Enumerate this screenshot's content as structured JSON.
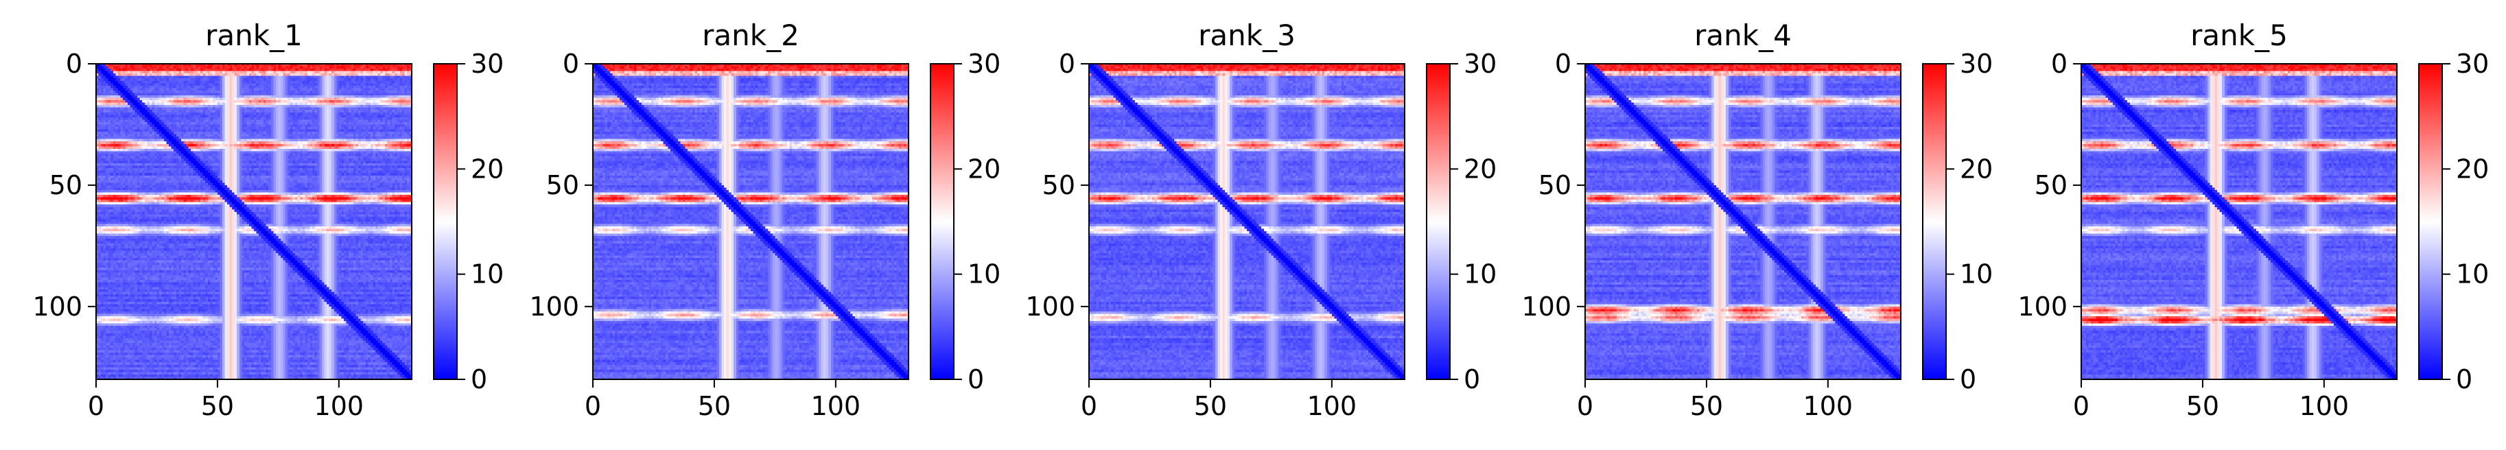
{
  "chart_data": [
    {
      "type": "heatmap",
      "title": "rank_1",
      "x_ticks": [
        0,
        50,
        100
      ],
      "y_ticks": [
        0,
        50,
        100
      ],
      "xlim": [
        0,
        130
      ],
      "ylim": [
        130,
        0
      ],
      "colorbar": {
        "min": 0,
        "max": 30,
        "ticks": [
          0,
          10,
          20,
          30
        ]
      },
      "features": {
        "top_band_max": 30,
        "row_bands": [
          [
            15,
            19
          ],
          [
            33,
            23
          ],
          [
            55,
            27
          ],
          [
            68,
            15
          ],
          [
            105,
            14
          ]
        ],
        "col_bands": [
          [
            55,
            21
          ],
          [
            95,
            16
          ],
          [
            75,
            14
          ]
        ]
      }
    },
    {
      "type": "heatmap",
      "title": "rank_2",
      "x_ticks": [
        0,
        50,
        100
      ],
      "y_ticks": [
        0,
        50,
        100
      ],
      "xlim": [
        0,
        130
      ],
      "ylim": [
        130,
        0
      ],
      "colorbar": {
        "min": 0,
        "max": 30,
        "ticks": [
          0,
          10,
          20,
          30
        ]
      },
      "features": {
        "top_band_max": 30,
        "row_bands": [
          [
            15,
            18
          ],
          [
            33,
            21
          ],
          [
            55,
            25
          ],
          [
            68,
            14
          ],
          [
            103,
            16
          ]
        ],
        "col_bands": [
          [
            55,
            20
          ],
          [
            95,
            15
          ],
          [
            75,
            13
          ]
        ]
      }
    },
    {
      "type": "heatmap",
      "title": "rank_3",
      "x_ticks": [
        0,
        50,
        100
      ],
      "y_ticks": [
        0,
        50,
        100
      ],
      "xlim": [
        0,
        130
      ],
      "ylim": [
        130,
        0
      ],
      "colorbar": {
        "min": 0,
        "max": 30,
        "ticks": [
          0,
          10,
          20,
          30
        ]
      },
      "features": {
        "top_band_max": 30,
        "row_bands": [
          [
            15,
            18
          ],
          [
            33,
            21
          ],
          [
            55,
            24
          ],
          [
            68,
            14
          ],
          [
            104,
            15
          ]
        ],
        "col_bands": [
          [
            55,
            20
          ],
          [
            95,
            14
          ],
          [
            75,
            13
          ]
        ]
      }
    },
    {
      "type": "heatmap",
      "title": "rank_4",
      "x_ticks": [
        0,
        50,
        100
      ],
      "y_ticks": [
        0,
        50,
        100
      ],
      "xlim": [
        0,
        130
      ],
      "ylim": [
        130,
        0
      ],
      "colorbar": {
        "min": 0,
        "max": 30,
        "ticks": [
          0,
          10,
          20,
          30
        ]
      },
      "features": {
        "top_band_max": 30,
        "row_bands": [
          [
            15,
            18
          ],
          [
            33,
            22
          ],
          [
            55,
            24
          ],
          [
            68,
            14
          ],
          [
            101,
            23
          ],
          [
            104,
            20
          ]
        ],
        "col_bands": [
          [
            55,
            21
          ],
          [
            95,
            15
          ],
          [
            75,
            13
          ]
        ]
      }
    },
    {
      "type": "heatmap",
      "title": "rank_5",
      "x_ticks": [
        0,
        50,
        100
      ],
      "y_ticks": [
        0,
        50,
        100
      ],
      "xlim": [
        0,
        130
      ],
      "ylim": [
        130,
        0
      ],
      "colorbar": {
        "min": 0,
        "max": 30,
        "ticks": [
          0,
          10,
          20,
          30
        ]
      },
      "features": {
        "top_band_max": 30,
        "row_bands": [
          [
            15,
            18
          ],
          [
            33,
            21
          ],
          [
            55,
            25
          ],
          [
            68,
            14
          ],
          [
            105,
            27
          ],
          [
            101,
            20
          ]
        ],
        "col_bands": [
          [
            55,
            21
          ],
          [
            95,
            15
          ],
          [
            75,
            13
          ]
        ]
      }
    }
  ]
}
